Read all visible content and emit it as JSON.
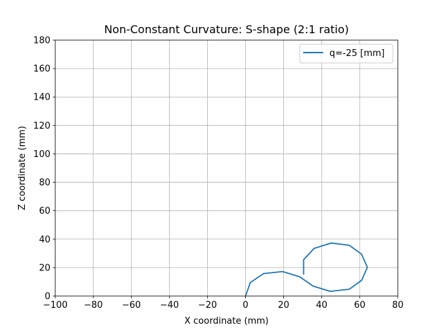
{
  "chart_data": {
    "type": "line",
    "title": "Non-Constant Curvature: S-shape (2:1 ratio)",
    "xlabel": "X coordinate (mm)",
    "ylabel": "Z coordinate (mm)",
    "xlim": [
      -100,
      80
    ],
    "ylim": [
      0,
      180
    ],
    "xticks": [
      -100,
      -80,
      -60,
      -40,
      -20,
      0,
      20,
      40,
      60,
      80
    ],
    "yticks": [
      0,
      20,
      40,
      60,
      80,
      100,
      120,
      140,
      160,
      180
    ],
    "xtick_labels": [
      "−100",
      "−80",
      "−60",
      "−40",
      "−20",
      "0",
      "20",
      "40",
      "60",
      "80"
    ],
    "ytick_labels": [
      "0",
      "20",
      "40",
      "60",
      "80",
      "100",
      "120",
      "140",
      "160",
      "180"
    ],
    "grid": true,
    "legend_position": "top-right",
    "series": [
      {
        "name": "q=-25 [mm]",
        "color": "#1f77b4",
        "x": [
          0,
          2.5,
          9.5,
          19.5,
          28.5,
          35.5,
          44.5,
          54.5,
          61,
          64,
          61,
          54.5,
          45,
          36,
          30.5,
          30.5
        ],
        "y": [
          0,
          9.5,
          15.8,
          17.2,
          13.5,
          7,
          3.3,
          4.8,
          11,
          20.2,
          29.4,
          35.7,
          37.3,
          33.5,
          25.5,
          15.5
        ]
      }
    ]
  }
}
